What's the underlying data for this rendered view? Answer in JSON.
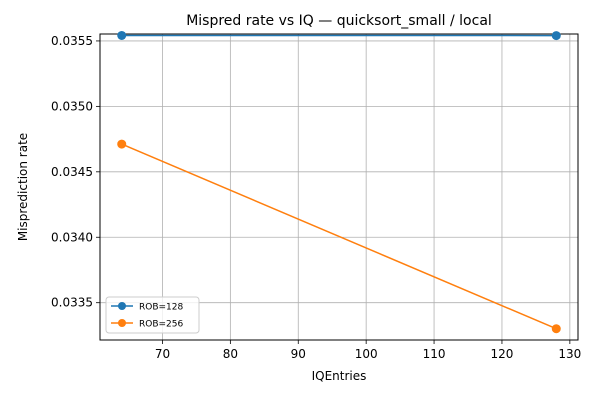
{
  "chart_data": {
    "type": "line",
    "title": "Mispred rate vs IQ — quicksort_small / local",
    "xlabel": "IQEntries",
    "ylabel": "Misprediction rate",
    "x": [
      64,
      128
    ],
    "series": [
      {
        "name": "ROB=128",
        "color": "#1f77b4",
        "values": [
          0.035542,
          0.035541
        ]
      },
      {
        "name": "ROB=256",
        "color": "#ff7f0e",
        "values": [
          0.034712,
          0.033301
        ]
      }
    ],
    "xlim": [
      60.8,
      131.2
    ],
    "ylim": [
      0.033215,
      0.035553
    ],
    "xticks": [
      70,
      80,
      90,
      100,
      110,
      120,
      130
    ],
    "xtick_labels": [
      "70",
      "80",
      "90",
      "100",
      "110",
      "120",
      "130"
    ],
    "yticks": [
      0.0335,
      0.034,
      0.0345,
      0.035,
      0.0355
    ],
    "ytick_labels": [
      "0.0335",
      "0.0340",
      "0.0345",
      "0.0350",
      "0.0355"
    ],
    "grid": true,
    "legend_position": "lower-left"
  }
}
